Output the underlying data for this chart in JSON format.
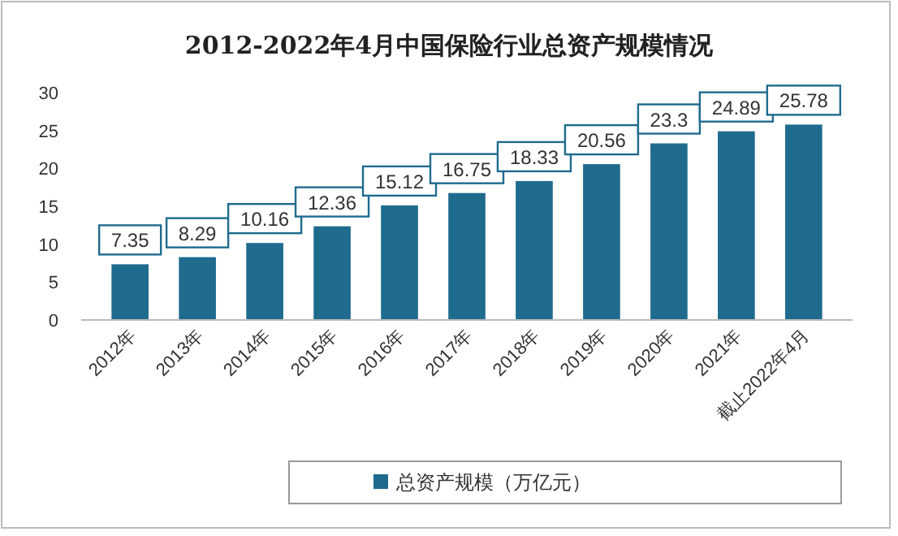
{
  "chart_data": {
    "type": "bar",
    "title": "2012-2022年4月中国保险行业总资产规模情况",
    "categories": [
      "2012年",
      "2013年",
      "2014年",
      "2015年",
      "2016年",
      "2017年",
      "2018年",
      "2019年",
      "2020年",
      "2021年",
      "截止2022年4月"
    ],
    "series": [
      {
        "name": "总资产规模（万亿元）",
        "color": "#1f6b8e",
        "values": [
          7.35,
          8.29,
          10.16,
          12.36,
          15.12,
          16.75,
          18.33,
          20.56,
          23.3,
          24.89,
          25.78
        ]
      }
    ],
    "ylim": [
      0,
      30
    ],
    "yticks": [
      0,
      5,
      10,
      15,
      20,
      25,
      30
    ],
    "grid": false,
    "legend": "bottom",
    "data_labels": true
  }
}
